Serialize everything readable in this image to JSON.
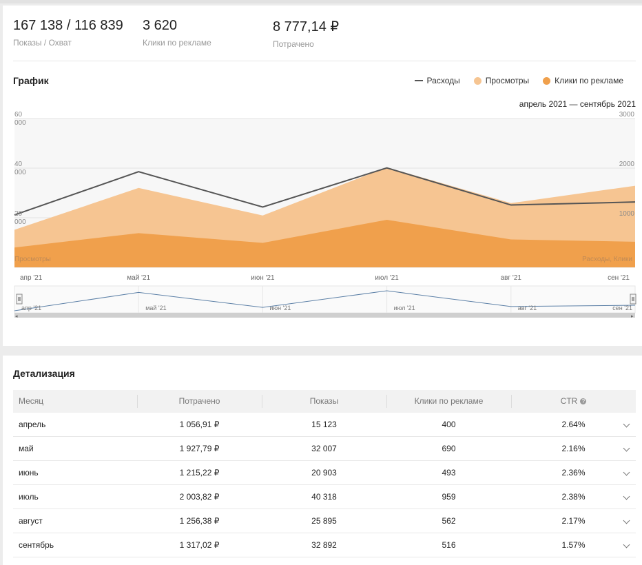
{
  "stats": [
    {
      "value": "167 138 / 116 839",
      "label": "Показы / Охват"
    },
    {
      "value": "3 620",
      "label": "Клики по рекламе"
    },
    {
      "value": "8 777,14 ₽",
      "label": "Потрачено"
    }
  ],
  "chart_section": {
    "title": "График",
    "period": "апрель 2021 — сентябрь 2021",
    "legend": [
      {
        "label": "Расходы",
        "kind": "line",
        "color": "#555555"
      },
      {
        "label": "Просмотры",
        "kind": "dot",
        "color": "#f6c592"
      },
      {
        "label": "Клики по рекламе",
        "kind": "dot",
        "color": "#f0a04c"
      }
    ]
  },
  "chart_data": {
    "type": "area",
    "categories": [
      "апр '21",
      "май '21",
      "июн '21",
      "июл '21",
      "авг '21",
      "сен '21"
    ],
    "left_axis": {
      "ticks": [
        "20 000",
        "40 000",
        "60 000"
      ],
      "label": "Просмотры",
      "range": [
        0,
        60000
      ]
    },
    "right_axis": {
      "ticks": [
        "1000",
        "2000",
        "3000"
      ],
      "label": "Расходы, Клики",
      "range": [
        0,
        3000
      ]
    },
    "series": [
      {
        "name": "Просмотры",
        "kind": "area",
        "axis": "left",
        "color": "#f6c592",
        "values": [
          15123,
          32007,
          20903,
          40318,
          25895,
          32892
        ]
      },
      {
        "name": "Клики по рекламе",
        "kind": "area",
        "axis": "right",
        "color": "#f0a04c",
        "values": [
          400,
          690,
          493,
          959,
          562,
          516
        ]
      },
      {
        "name": "Расходы",
        "kind": "line",
        "axis": "right",
        "color": "#555555",
        "values": [
          1056.91,
          1927.79,
          1215.22,
          2003.82,
          1256.38,
          1317.02
        ]
      }
    ],
    "grid": true,
    "navigator": {
      "labels": [
        "апр '21",
        "май '21",
        "июн '21",
        "июл '21",
        "авг '21",
        "сен '21"
      ],
      "values": [
        1056.91,
        1927.79,
        1215.22,
        2003.82,
        1256.38,
        1317.02
      ]
    }
  },
  "details": {
    "title": "Детализация",
    "columns": [
      "Месяц",
      "Потрачено",
      "Показы",
      "Клики по рекламе",
      "CTR"
    ],
    "help_icon": "?",
    "rows": [
      {
        "month": "апрель",
        "spent": "1 056,91 ₽",
        "views": "15 123",
        "clicks": "400",
        "ctr": "2.64%"
      },
      {
        "month": "май",
        "spent": "1 927,79 ₽",
        "views": "32 007",
        "clicks": "690",
        "ctr": "2.16%"
      },
      {
        "month": "июнь",
        "spent": "1 215,22 ₽",
        "views": "20 903",
        "clicks": "493",
        "ctr": "2.36%"
      },
      {
        "month": "июль",
        "spent": "2 003,82 ₽",
        "views": "40 318",
        "clicks": "959",
        "ctr": "2.38%"
      },
      {
        "month": "август",
        "spent": "1 256,38 ₽",
        "views": "25 895",
        "clicks": "562",
        "ctr": "2.17%"
      },
      {
        "month": "сентябрь",
        "spent": "1 317,02 ₽",
        "views": "32 892",
        "clicks": "516",
        "ctr": "1.57%"
      }
    ]
  }
}
